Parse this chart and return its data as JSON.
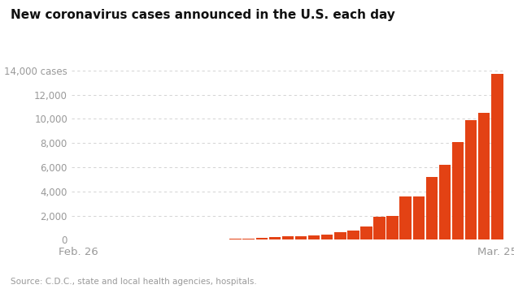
{
  "title": "New coronavirus cases announced in the U.S. each day",
  "source": "Source: C.D.C., state and local health agencies, hospitals.",
  "bar_color": "#e34214",
  "background_color": "#ffffff",
  "x_labels": [
    "Feb. 26",
    "Mar. 25"
  ],
  "ytick_labels": [
    "0",
    "2,000",
    "4,000",
    "6,000",
    "8,000",
    "10,000",
    "12,000",
    "14,000 cases"
  ],
  "yticks": [
    0,
    2000,
    4000,
    6000,
    8000,
    10000,
    12000,
    14000
  ],
  "ylim": [
    0,
    14800
  ],
  "values": [
    5,
    2,
    5,
    8,
    10,
    15,
    18,
    22,
    25,
    30,
    35,
    55,
    80,
    120,
    180,
    230,
    270,
    310,
    380,
    460,
    650,
    780,
    1100,
    1900,
    2000,
    3600,
    3600,
    5200,
    6200,
    8100,
    9900,
    10500,
    13700
  ]
}
